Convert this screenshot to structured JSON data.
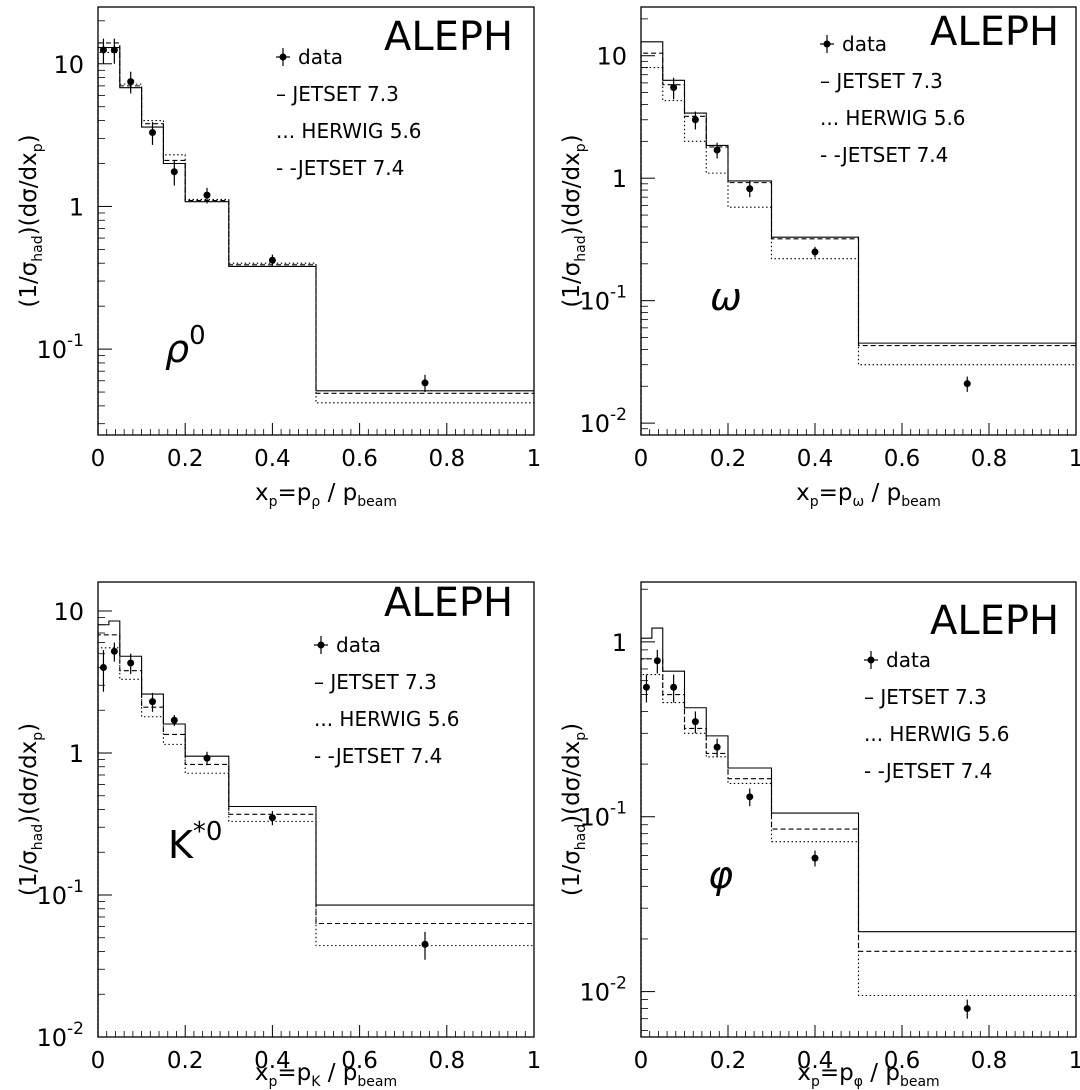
{
  "chart_data": [
    {
      "type": "line",
      "experiment": "ALEPH",
      "particle": "ρ⁰",
      "particle_label": {
        "base": "ρ",
        "sup": "0"
      },
      "ylabel": {
        "parts": [
          "(1/σ",
          "had",
          ")(dσ/dx",
          "p",
          ")"
        ]
      },
      "xlabel": {
        "parts": [
          "x",
          "p",
          "=p",
          "ρ",
          " / p",
          "beam"
        ]
      },
      "x_ticks": [
        "0",
        "0.2",
        "0.4",
        "0.6",
        "0.8",
        "1"
      ],
      "y_ticks": [
        {
          "label": "10",
          "sup": "-1",
          "value": 0.1
        },
        {
          "label": "1",
          "sup": "",
          "value": 1
        },
        {
          "label": "10",
          "sup": "",
          "value": 10
        }
      ],
      "xlim": [
        0,
        1
      ],
      "ylim": [
        0.025,
        25
      ],
      "yscale": "log",
      "legend": [
        "data",
        "– JETSET 7.3",
        "... HERWIG 5.6",
        "- -JETSET 7.4"
      ],
      "bin_edges": [
        0,
        0.025,
        0.05,
        0.1,
        0.15,
        0.2,
        0.3,
        0.5,
        1.0
      ],
      "series": [
        {
          "name": "JETSET 7.3",
          "style": "solid",
          "values": [
            13,
            13,
            6.8,
            3.6,
            2.0,
            1.08,
            0.38,
            0.051
          ]
        },
        {
          "name": "HERWIG 5.6",
          "style": "dotted",
          "values": [
            12,
            12,
            7.2,
            4.0,
            2.3,
            1.12,
            0.4,
            0.042
          ]
        },
        {
          "name": "JETSET 7.4",
          "style": "dashed",
          "values": [
            14,
            14,
            7.0,
            3.8,
            2.1,
            1.1,
            0.39,
            0.049
          ]
        },
        {
          "name": "data",
          "style": "points",
          "x": [
            0.0125,
            0.0375,
            0.075,
            0.125,
            0.175,
            0.25,
            0.4,
            0.75
          ],
          "y": [
            12.5,
            12.5,
            7.5,
            3.3,
            1.75,
            1.2,
            0.42,
            0.058
          ],
          "err": [
            2.5,
            2.5,
            1.3,
            0.6,
            0.35,
            0.15,
            0.04,
            0.008
          ]
        }
      ]
    },
    {
      "type": "line",
      "experiment": "ALEPH",
      "particle": "ω",
      "particle_label": {
        "base": "ω",
        "sup": ""
      },
      "ylabel": {
        "parts": [
          "(1/σ",
          "had",
          ")(dσ/dx",
          "p",
          ")"
        ]
      },
      "xlabel": {
        "parts": [
          "x",
          "p",
          "=p",
          "ω",
          " / p",
          "beam"
        ]
      },
      "x_ticks": [
        "0",
        "0.2",
        "0.4",
        "0.6",
        "0.8",
        "1"
      ],
      "y_ticks": [
        {
          "label": "10",
          "sup": "-2",
          "value": 0.01
        },
        {
          "label": "10",
          "sup": "-1",
          "value": 0.1
        },
        {
          "label": "1",
          "sup": "",
          "value": 1
        },
        {
          "label": "10",
          "sup": "",
          "value": 10
        }
      ],
      "xlim": [
        0,
        1
      ],
      "ylim": [
        0.008,
        25
      ],
      "yscale": "log",
      "legend": [
        "data",
        "– JETSET 7.3",
        "... HERWIG 5.6",
        "- -JETSET 7.4"
      ],
      "bin_edges": [
        0,
        0.025,
        0.05,
        0.1,
        0.15,
        0.2,
        0.3,
        0.5,
        1.0
      ],
      "series": [
        {
          "name": "JETSET 7.3",
          "style": "solid",
          "values": [
            13,
            13,
            6.3,
            3.4,
            1.85,
            0.95,
            0.33,
            0.045
          ]
        },
        {
          "name": "HERWIG 5.6",
          "style": "dotted",
          "values": [
            8,
            8,
            4.3,
            2.0,
            1.1,
            0.58,
            0.22,
            0.03
          ]
        },
        {
          "name": "JETSET 7.4",
          "style": "dashed",
          "values": [
            10.5,
            10.5,
            5.8,
            3.2,
            1.8,
            0.92,
            0.32,
            0.043
          ]
        },
        {
          "name": "data",
          "style": "points",
          "x": [
            0.075,
            0.125,
            0.175,
            0.25,
            0.4,
            0.75
          ],
          "y": [
            5.5,
            3.0,
            1.7,
            0.82,
            0.25,
            0.021
          ],
          "err": [
            1.1,
            0.5,
            0.25,
            0.12,
            0.025,
            0.003
          ]
        }
      ]
    },
    {
      "type": "line",
      "experiment": "ALEPH",
      "particle": "K*⁰",
      "particle_label": {
        "base": "K",
        "sup": "*0"
      },
      "ylabel": {
        "parts": [
          "(1/σ",
          "had",
          ")(dσ/dx",
          "p",
          ")"
        ]
      },
      "xlabel": {
        "parts": [
          "x",
          "p",
          "=p",
          "K",
          " / p",
          "beam"
        ]
      },
      "x_ticks": [
        "0",
        "0.2",
        "0.4",
        "0.6",
        "0.8",
        "1"
      ],
      "y_ticks": [
        {
          "label": "10",
          "sup": "-2",
          "value": 0.01
        },
        {
          "label": "10",
          "sup": "-1",
          "value": 0.1
        },
        {
          "label": "1",
          "sup": "",
          "value": 1
        },
        {
          "label": "10",
          "sup": "",
          "value": 10
        }
      ],
      "xlim": [
        0,
        1
      ],
      "ylim": [
        0.01,
        16
      ],
      "yscale": "log",
      "legend": [
        "data",
        "– JETSET 7.3",
        "... HERWIG 5.6",
        "- -JETSET 7.4"
      ],
      "bin_edges": [
        0,
        0.025,
        0.05,
        0.1,
        0.15,
        0.2,
        0.3,
        0.5,
        1.0
      ],
      "series": [
        {
          "name": "JETSET 7.3",
          "style": "solid",
          "values": [
            8,
            8.5,
            4.8,
            2.6,
            1.6,
            0.95,
            0.42,
            0.085
          ]
        },
        {
          "name": "HERWIG 5.6",
          "style": "dotted",
          "values": [
            5.5,
            5.5,
            3.3,
            1.8,
            1.15,
            0.72,
            0.33,
            0.044
          ]
        },
        {
          "name": "JETSET 7.4",
          "style": "dashed",
          "values": [
            6.8,
            6.8,
            3.8,
            2.1,
            1.35,
            0.83,
            0.37,
            0.063
          ]
        },
        {
          "name": "data",
          "style": "points",
          "x": [
            0.0125,
            0.0375,
            0.075,
            0.125,
            0.175,
            0.25,
            0.4,
            0.75
          ],
          "y": [
            4.0,
            5.2,
            4.3,
            2.3,
            1.7,
            0.92,
            0.35,
            0.045
          ],
          "err": [
            1.3,
            0.8,
            0.7,
            0.35,
            0.15,
            0.1,
            0.04,
            0.01
          ]
        }
      ]
    },
    {
      "type": "line",
      "experiment": "ALEPH",
      "particle": "φ",
      "particle_label": {
        "base": "φ",
        "sup": ""
      },
      "ylabel": {
        "parts": [
          "(1/σ",
          "had",
          ")(dσ/dx",
          "p",
          ")"
        ]
      },
      "xlabel": {
        "parts": [
          "x",
          "p",
          "=p",
          "φ",
          " / p",
          "beam"
        ]
      },
      "x_ticks": [
        "0",
        "0.2",
        "0.4",
        "0.6",
        "0.8",
        "1"
      ],
      "y_ticks": [
        {
          "label": "10",
          "sup": "-2",
          "value": 0.01
        },
        {
          "label": "10",
          "sup": "-1",
          "value": 0.1
        },
        {
          "label": "1",
          "sup": "",
          "value": 1
        }
      ],
      "xlim": [
        0,
        1
      ],
      "ylim": [
        0.0055,
        2.2
      ],
      "yscale": "log",
      "legend": [
        "data",
        "– JETSET 7.3",
        "... HERWIG 5.6",
        "- -JETSET 7.4"
      ],
      "bin_edges": [
        0,
        0.025,
        0.05,
        0.1,
        0.15,
        0.2,
        0.3,
        0.5,
        1.0
      ],
      "series": [
        {
          "name": "JETSET 7.3",
          "style": "solid",
          "values": [
            1.05,
            1.2,
            0.68,
            0.42,
            0.29,
            0.19,
            0.105,
            0.022
          ]
        },
        {
          "name": "HERWIG 5.6",
          "style": "dotted",
          "values": [
            0.65,
            0.65,
            0.45,
            0.3,
            0.22,
            0.155,
            0.072,
            0.0095
          ]
        },
        {
          "name": "JETSET 7.4",
          "style": "dashed",
          "values": [
            0.8,
            0.8,
            0.5,
            0.32,
            0.23,
            0.165,
            0.085,
            0.017
          ]
        },
        {
          "name": "data",
          "style": "points",
          "x": [
            0.0125,
            0.0375,
            0.075,
            0.125,
            0.175,
            0.25,
            0.4,
            0.75
          ],
          "y": [
            0.55,
            0.78,
            0.55,
            0.35,
            0.25,
            0.13,
            0.058,
            0.008
          ],
          "err": [
            0.1,
            0.12,
            0.1,
            0.05,
            0.03,
            0.015,
            0.006,
            0.001
          ]
        }
      ]
    }
  ]
}
